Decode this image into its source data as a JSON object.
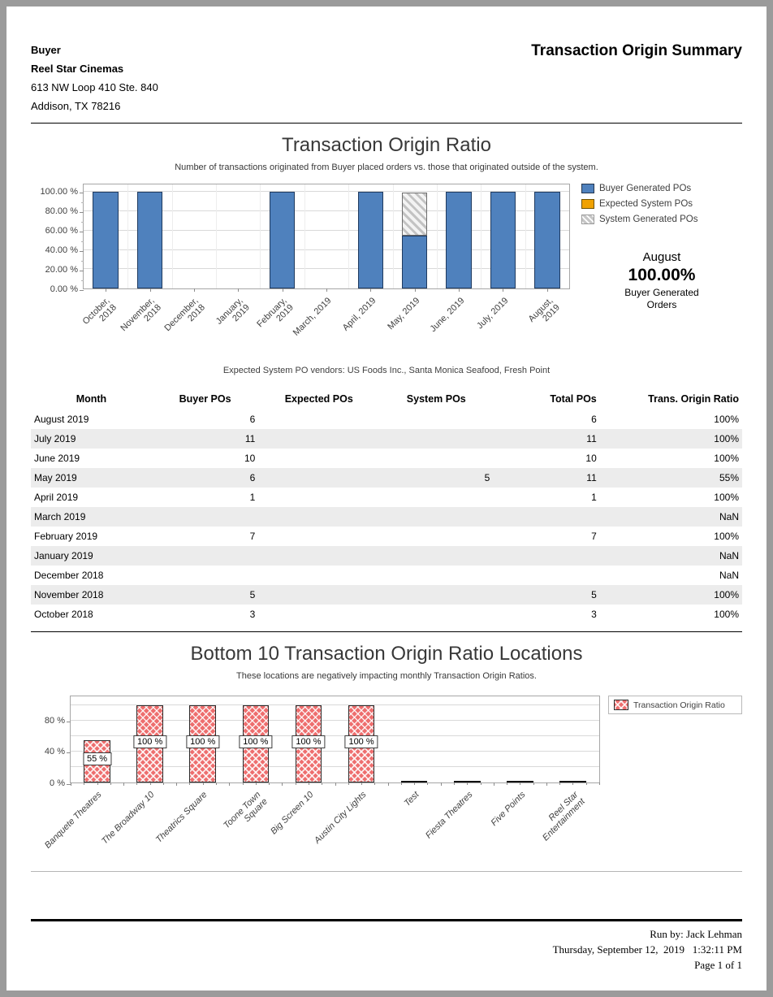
{
  "header": {
    "buyer_label": "Buyer",
    "buyer_name": "Reel Star Cinemas",
    "address_line1": "613 NW Loop 410 Ste. 840",
    "address_line2": "Addison, TX 78216",
    "report_title": "Transaction Origin Summary"
  },
  "chart_data": [
    {
      "type": "bar",
      "stacked": true,
      "title": "Transaction Origin Ratio",
      "subtitle": "Number of transactions originated from Buyer placed orders vs. those that originated outside of the system.",
      "categories": [
        "October,\n2018",
        "November,\n2018",
        "December,\n2018",
        "January,\n2019",
        "February,\n2019",
        "March, 2019",
        "April, 2019",
        "May, 2019",
        "June, 2019",
        "July, 2019",
        "August,\n2019"
      ],
      "series": [
        {
          "name": "Buyer Generated POs",
          "swatch": "sw-blue",
          "color": "#4f81bd",
          "values": [
            100,
            100,
            0,
            0,
            100,
            0,
            100,
            55,
            100,
            100,
            100
          ]
        },
        {
          "name": "Expected System POs",
          "swatch": "sw-orange",
          "color": "#f0a202",
          "values": [
            0,
            0,
            0,
            0,
            0,
            0,
            0,
            0,
            0,
            0,
            0
          ]
        },
        {
          "name": "System Generated POs",
          "swatch": "sw-gray",
          "color": "#c6c6c6",
          "values": [
            0,
            0,
            0,
            0,
            0,
            0,
            0,
            45,
            0,
            0,
            0
          ]
        }
      ],
      "ylim": [
        0,
        100
      ],
      "ytick_values": [
        100,
        80,
        60,
        40,
        20,
        0
      ],
      "ytick_labels": [
        "100.00 %",
        "80.00 %",
        "60.00 %",
        "40.00 %",
        "20.00 %",
        "0.00 %"
      ],
      "grid": true,
      "legend_position": "right",
      "callout": {
        "month": "August",
        "value": "100.00%",
        "caption": "Buyer Generated\nOrders"
      },
      "footnote": "Expected System PO vendors: US Foods Inc., Santa Monica Seafood, Fresh Point"
    },
    {
      "type": "bar",
      "title": "Bottom 10 Transaction Origin Ratio Locations",
      "subtitle": "These locations are negatively impacting monthly Transaction Origin Ratios.",
      "categories": [
        "Banquete Theatres",
        "The Broadway 10",
        "Theatrics Square",
        "Toone Town\nSquare",
        "Big Screen 10",
        "Austin City Lights",
        "Test",
        "Fiesta Theatres",
        "Five Points",
        "Reel Star\nEntertainment"
      ],
      "values": [
        55,
        100,
        100,
        100,
        100,
        100,
        0,
        0,
        0,
        0
      ],
      "bar_labels": [
        "55 %",
        "100 %",
        "100 %",
        "100 %",
        "100 %",
        "100 %",
        "",
        "",
        "",
        ""
      ],
      "series_name": "Transaction Origin Ratio",
      "series_color": "#ee6e6e",
      "ylim": [
        0,
        100
      ],
      "ytick_values": [
        80,
        40,
        0
      ],
      "ytick_labels": [
        "80 %",
        "40 %",
        "0 %"
      ],
      "grid": true,
      "legend_position": "right"
    }
  ],
  "table": {
    "columns": [
      "Month",
      "Buyer POs",
      "Expected POs",
      "System POs",
      "Total POs",
      "Trans. Origin Ratio"
    ],
    "rows": [
      [
        "August 2019",
        "6",
        "",
        "",
        "6",
        "100%"
      ],
      [
        "July 2019",
        "11",
        "",
        "",
        "11",
        "100%"
      ],
      [
        "June 2019",
        "10",
        "",
        "",
        "10",
        "100%"
      ],
      [
        "May 2019",
        "6",
        "",
        "5",
        "11",
        "55%"
      ],
      [
        "April 2019",
        "1",
        "",
        "",
        "1",
        "100%"
      ],
      [
        "March 2019",
        "",
        "",
        "",
        "",
        "NaN"
      ],
      [
        "February 2019",
        "7",
        "",
        "",
        "7",
        "100%"
      ],
      [
        "January 2019",
        "",
        "",
        "",
        "",
        "NaN"
      ],
      [
        "December 2018",
        "",
        "",
        "",
        "",
        "NaN"
      ],
      [
        "November 2018",
        "5",
        "",
        "",
        "5",
        "100%"
      ],
      [
        "October 2018",
        "3",
        "",
        "",
        "3",
        "100%"
      ]
    ]
  },
  "footer": {
    "run_by": "Run by: Jack Lehman",
    "datetime": "Thursday, September 12,  2019   1:32:11 PM",
    "page": "Page 1 of 1"
  }
}
